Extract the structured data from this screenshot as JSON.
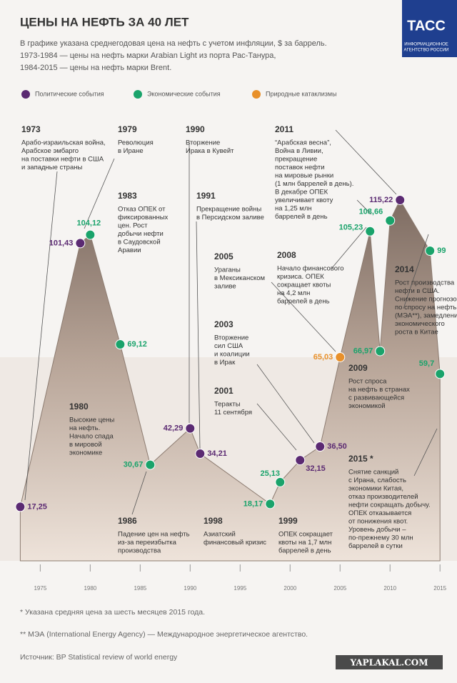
{
  "chart_data": {
    "type": "area",
    "title": "ЦЕНЫ НА НЕФТЬ ЗА 40 ЛЕТ",
    "subtitle": [
      "В графике указана среднегодовая цена на нефть с учетом инфляции, $ за баррель.",
      "1973-1984 — цены на нефть марки Arabian Light из порта Рас-Танура,",
      "1984-2015 — цены на нефть марки Brent."
    ],
    "logo": {
      "name": "ТАСС",
      "lines": [
        "ИНФОРМАЦИОННОЕ",
        "АГЕНТСТВО РОССИИ"
      ]
    },
    "legend": [
      {
        "name": "Политические события",
        "color": "#5b2a72"
      },
      {
        "name": "Экономические события",
        "color": "#1aa36b"
      },
      {
        "name": "Природные катаклизмы",
        "color": "#e8902a"
      }
    ],
    "x": [
      1973,
      1979,
      1980,
      1983,
      1986,
      1990,
      1991,
      1998,
      1999,
      2001,
      2003,
      2005,
      2008,
      2009,
      2010,
      2011,
      2014,
      2015
    ],
    "values": [
      17.25,
      101.43,
      104.12,
      69.12,
      30.67,
      42.29,
      34.21,
      18.17,
      25.13,
      32.15,
      36.5,
      65.03,
      105.23,
      66.97,
      108.66,
      115.22,
      99,
      59.7
    ],
    "value_labels": [
      "17,25",
      "101,43",
      "104,12",
      "69,12",
      "30,67",
      "42,29",
      "34,21",
      "18,17",
      "25,13",
      "32,15",
      "36,50",
      "65,03",
      "105,23",
      "66,97",
      "108,66",
      "115,22",
      "99",
      "59,7"
    ],
    "point_colors": [
      "#5b2a72",
      "#5b2a72",
      "#1aa36b",
      "#1aa36b",
      "#1aa36b",
      "#5b2a72",
      "#5b2a72",
      "#1aa36b",
      "#1aa36b",
      "#5b2a72",
      "#5b2a72",
      "#e8902a",
      "#1aa36b",
      "#1aa36b",
      "#1aa36b",
      "#5b2a72",
      "#1aa36b",
      "#1aa36b"
    ],
    "xlim": [
      1972.4,
      2016.7
    ],
    "ylim": [
      0,
      120
    ],
    "xticks": [
      1975,
      1980,
      1985,
      1990,
      1995,
      2000,
      2005,
      2010,
      2015
    ],
    "annotations": [
      {
        "title": "1973",
        "lines": [
          "Арабо-израильская война,",
          "Арабское эмбарго",
          "на поставки нефти в США",
          "и западные страны"
        ]
      },
      {
        "title": "1979",
        "lines": [
          "Революция",
          "в Иране"
        ]
      },
      {
        "title": "1990",
        "lines": [
          "Вторжение",
          "Ирака в Кувейт"
        ]
      },
      {
        "title": "2011",
        "lines": [
          "“Арабская весна”,",
          "Война в Ливии,",
          "прекращение",
          "поставок нефти",
          "на мировые рынки",
          "(1 млн баррелей в день).",
          "В декабре ОПЕК",
          "увеличивает квоту",
          "на 1,25 млн",
          "баррелей в день"
        ]
      },
      {
        "title": "1983",
        "lines": [
          "Отказ ОПЕК от",
          "фиксированных",
          "цен. Рост",
          "добычи нефти",
          "в Саудовской",
          "Аравии"
        ]
      },
      {
        "title": "1991",
        "lines": [
          "Прекращение войны",
          "в Персидском заливе"
        ]
      },
      {
        "title": "2005",
        "lines": [
          "Ураганы",
          "в Мексиканском",
          "заливе"
        ]
      },
      {
        "title": "2008",
        "lines": [
          "Начало финансового",
          "кризиса. ОПЕК",
          "сокращает квоты",
          "на 4,2 млн",
          "баррелей в день"
        ]
      },
      {
        "title": "2014",
        "lines": [
          "Рост производства",
          "нефти в США.",
          "Снижение прогнозов",
          "по спросу на нефть",
          "(МЭА**), замедление",
          "экономического",
          "роста в Китае"
        ]
      },
      {
        "title": "2003",
        "lines": [
          "Вторжение",
          "сил США",
          "и коалиции",
          "в Ирак"
        ]
      },
      {
        "title": "2001",
        "lines": [
          "Теракты",
          "11 сентября"
        ]
      },
      {
        "title": "2009",
        "lines": [
          "Рост спроса",
          "на нефть в странах",
          "с развивающейся",
          "экономикой"
        ]
      },
      {
        "title": "1980",
        "lines": [
          "Высокие цены",
          "на нефть.",
          "Начало спада",
          "в мировой",
          "экономике"
        ]
      },
      {
        "title": "2015 *",
        "lines": [
          "Снятие санкций",
          "с Ирана, слабость",
          "экономики Китая,",
          "отказ производителей",
          "нефти сокращать добычу.",
          "ОПЕК отказывается",
          "от понижения квот.",
          "Уровень добычи –",
          "по-прежнему 30 млн",
          "баррелей в сутки"
        ]
      },
      {
        "title": "1986",
        "lines": [
          "Падение цен на нефть",
          "из-за переизбытка",
          "производства"
        ]
      },
      {
        "title": "1998",
        "lines": [
          "Азиатский",
          "финансовый кризис"
        ]
      },
      {
        "title": "1999",
        "lines": [
          "ОПЕК сокращает",
          "квоты на 1,7 млн",
          "баррелей в день"
        ]
      }
    ],
    "footnotes": [
      "* Указана средняя цена за шесть месяцев 2015 года.",
      "** МЭА (International Energy Agency) — Международное энергетическое агентство.",
      "Источник: BP Statistical review of world energy"
    ],
    "watermark": "YAPLAKAL.COM"
  }
}
